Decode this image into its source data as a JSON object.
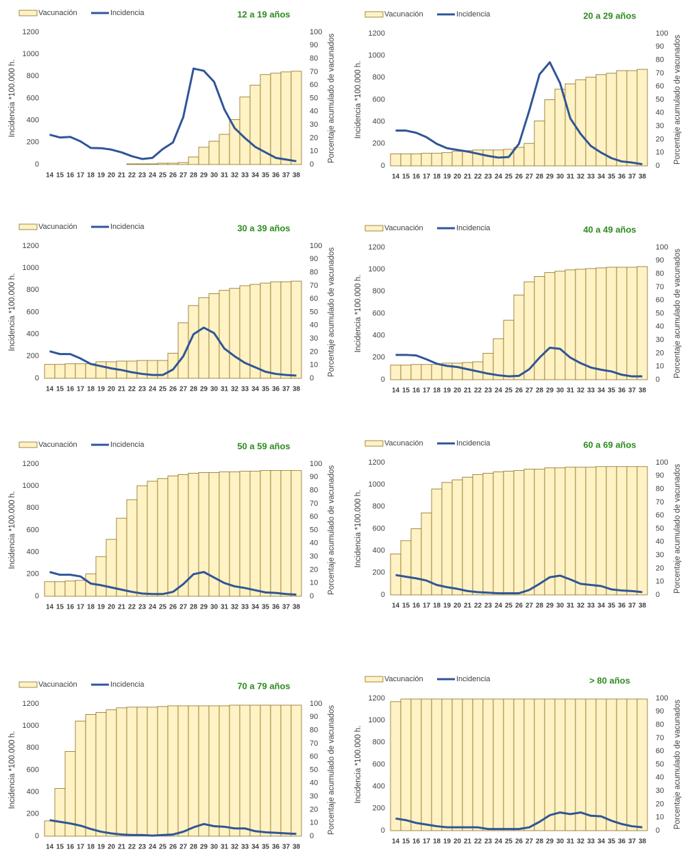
{
  "chart_data": [
    {
      "type": "combo",
      "title": "12 a 19 años",
      "y_label": "Incidencia *100.000 h.",
      "y2_label": "Porcentaje acumulado de vacunados",
      "categories": [
        "14",
        "15",
        "16",
        "17",
        "18",
        "19",
        "20",
        "21",
        "22",
        "23",
        "24",
        "25",
        "26",
        "27",
        "28",
        "29",
        "30",
        "31",
        "32",
        "33",
        "34",
        "35",
        "36",
        "37",
        "38"
      ],
      "series": [
        {
          "name": "Vacunación",
          "type": "bar",
          "axis": "y2",
          "color": "#fff2c4",
          "values": [
            0,
            0,
            0,
            0,
            0,
            0,
            0,
            0,
            0.5,
            0.5,
            0.5,
            1,
            1,
            1.5,
            5.7,
            13,
            17.6,
            22.8,
            34,
            51,
            60,
            68,
            69,
            70,
            70.5
          ]
        },
        {
          "name": "Incidencia",
          "type": "line",
          "color": "#2f5597",
          "values": [
            270,
            245,
            250,
            210,
            150,
            148,
            135,
            110,
            75,
            50,
            60,
            140,
            200,
            430,
            870,
            850,
            750,
            500,
            330,
            240,
            160,
            110,
            60,
            45,
            30
          ]
        }
      ],
      "ylim": [
        0,
        1200
      ],
      "yticks": [
        0,
        200,
        400,
        600,
        800,
        1000,
        1200
      ],
      "y2lim": [
        0,
        100
      ],
      "y2ticks": [
        0,
        10,
        20,
        30,
        40,
        50,
        60,
        70,
        80,
        90,
        100
      ]
    },
    {
      "type": "combo",
      "title": "20 a 29 años",
      "y_label": "Incidencia *100.000 h.",
      "y2_label": "Porcentaje acumulado de vacunados",
      "categories": [
        "14",
        "15",
        "16",
        "17",
        "18",
        "19",
        "20",
        "21",
        "22",
        "23",
        "24",
        "25",
        "26",
        "27",
        "28",
        "29",
        "30",
        "31",
        "32",
        "33",
        "34",
        "35",
        "36",
        "37",
        "38"
      ],
      "series": [
        {
          "name": "Vacunación",
          "type": "bar",
          "axis": "y2",
          "color": "#fff2c4",
          "values": [
            9,
            9,
            9,
            9.5,
            9.5,
            10,
            11,
            11.5,
            12,
            12,
            12,
            12.5,
            14,
            17,
            34,
            50,
            58,
            62,
            65,
            67,
            69,
            70,
            72,
            72,
            73
          ]
        },
        {
          "name": "Incidencia",
          "type": "line",
          "color": "#2f5597",
          "values": [
            320,
            320,
            300,
            260,
            200,
            160,
            145,
            130,
            110,
            90,
            75,
            80,
            200,
            500,
            830,
            940,
            750,
            430,
            290,
            180,
            120,
            70,
            40,
            30,
            15
          ]
        }
      ],
      "ylim": [
        0,
        1200
      ],
      "yticks": [
        0,
        200,
        400,
        600,
        800,
        1000,
        1200
      ],
      "y2lim": [
        0,
        100
      ],
      "y2ticks": [
        0,
        10,
        20,
        30,
        40,
        50,
        60,
        70,
        80,
        90,
        100
      ]
    },
    {
      "type": "combo",
      "title": "30 a 39 años",
      "y_label": "Incidencia *100.000 h.",
      "y2_label": "Porcentaje acumulado de vacunados",
      "categories": [
        "14",
        "15",
        "16",
        "17",
        "18",
        "19",
        "20",
        "21",
        "22",
        "23",
        "24",
        "25",
        "26",
        "27",
        "28",
        "29",
        "30",
        "31",
        "32",
        "33",
        "34",
        "35",
        "36",
        "37",
        "38"
      ],
      "series": [
        {
          "name": "Vacunación",
          "type": "bar",
          "axis": "y2",
          "color": "#fff2c4",
          "values": [
            10.5,
            10.5,
            11,
            11,
            11,
            12.5,
            12.5,
            13,
            13,
            13.5,
            13.5,
            13.5,
            19,
            42,
            55,
            61,
            64,
            66.5,
            68,
            70,
            71,
            72,
            73,
            73,
            73.5
          ]
        },
        {
          "name": "Incidencia",
          "type": "line",
          "color": "#2f5597",
          "values": [
            245,
            220,
            220,
            180,
            130,
            110,
            90,
            75,
            55,
            40,
            30,
            30,
            80,
            200,
            400,
            460,
            410,
            270,
            200,
            140,
            100,
            60,
            40,
            30,
            25
          ]
        }
      ],
      "ylim": [
        0,
        1200
      ],
      "yticks": [
        0,
        200,
        400,
        600,
        800,
        1000,
        1200
      ],
      "y2lim": [
        0,
        100
      ],
      "y2ticks": [
        0,
        10,
        20,
        30,
        40,
        50,
        60,
        70,
        80,
        90,
        100
      ]
    },
    {
      "type": "combo",
      "title": "40 a 49 años",
      "y_label": "Incidencia *100.000 h.",
      "y2_label": "Porcentaje acumulado de vacunados",
      "categories": [
        "14",
        "15",
        "16",
        "17",
        "18",
        "19",
        "20",
        "21",
        "22",
        "23",
        "24",
        "25",
        "26",
        "27",
        "28",
        "29",
        "30",
        "31",
        "32",
        "33",
        "34",
        "35",
        "36",
        "37",
        "38"
      ],
      "series": [
        {
          "name": "Vacunación",
          "type": "bar",
          "axis": "y2",
          "color": "#fff2c4",
          "values": [
            11,
            11,
            11.5,
            11.5,
            11.5,
            12.5,
            12.5,
            13,
            13.5,
            20,
            31,
            45,
            64,
            74,
            78,
            81,
            82,
            83,
            83.5,
            84,
            84.5,
            85,
            85,
            85,
            85.5
          ]
        },
        {
          "name": "Incidencia",
          "type": "line",
          "color": "#2f5597",
          "values": [
            225,
            225,
            220,
            185,
            145,
            125,
            115,
            95,
            75,
            55,
            40,
            30,
            35,
            95,
            200,
            290,
            280,
            200,
            150,
            110,
            90,
            75,
            45,
            30,
            30
          ]
        }
      ],
      "ylim": [
        0,
        1200
      ],
      "yticks": [
        0,
        200,
        400,
        600,
        800,
        1000,
        1200
      ],
      "y2lim": [
        0,
        100
      ],
      "y2ticks": [
        0,
        10,
        20,
        30,
        40,
        50,
        60,
        70,
        80,
        90,
        100
      ]
    },
    {
      "type": "combo",
      "title": "50 a 59 años",
      "y_label": "Incidencia *100.000 h.",
      "y2_label": "Porcentaje acumulado de vacunados",
      "categories": [
        "14",
        "15",
        "16",
        "17",
        "18",
        "19",
        "20",
        "21",
        "22",
        "23",
        "24",
        "25",
        "26",
        "27",
        "28",
        "29",
        "30",
        "31",
        "32",
        "33",
        "34",
        "35",
        "36",
        "37",
        "38"
      ],
      "series": [
        {
          "name": "Vacunación",
          "type": "bar",
          "axis": "y2",
          "color": "#fff2c4",
          "values": [
            11,
            11,
            11.5,
            12,
            17,
            30,
            43,
            59,
            73,
            83.5,
            87,
            89,
            91,
            92,
            93,
            93.5,
            93.5,
            94,
            94,
            94.5,
            94.5,
            95,
            95,
            95,
            95
          ]
        },
        {
          "name": "Incidencia",
          "type": "line",
          "color": "#2f5597",
          "values": [
            220,
            195,
            195,
            180,
            115,
            100,
            80,
            60,
            40,
            25,
            20,
            20,
            40,
            110,
            200,
            220,
            170,
            120,
            90,
            75,
            55,
            35,
            30,
            20,
            15
          ]
        }
      ],
      "ylim": [
        0,
        1200
      ],
      "yticks": [
        0,
        200,
        400,
        600,
        800,
        1000,
        1200
      ],
      "y2lim": [
        0,
        100
      ],
      "y2ticks": [
        0,
        10,
        20,
        30,
        40,
        50,
        60,
        70,
        80,
        90,
        100
      ]
    },
    {
      "type": "combo",
      "title": "60 a 69 años",
      "y_label": "Incidencia *100.000 h.",
      "y2_label": "Porcentaje acumulado de vacunados",
      "categories": [
        "14",
        "15",
        "16",
        "17",
        "18",
        "19",
        "20",
        "21",
        "22",
        "23",
        "24",
        "25",
        "26",
        "27",
        "28",
        "29",
        "30",
        "31",
        "32",
        "33",
        "34",
        "35",
        "36",
        "37",
        "38"
      ],
      "series": [
        {
          "name": "Vacunación",
          "type": "bar",
          "axis": "y2",
          "color": "#fff2c4",
          "values": [
            31,
            41,
            50,
            62,
            80,
            85,
            87,
            89,
            91,
            92,
            93,
            93.5,
            94,
            95,
            95,
            96,
            96,
            96.5,
            96.5,
            96.5,
            97,
            97,
            97,
            97,
            97
          ]
        },
        {
          "name": "Incidencia",
          "type": "line",
          "color": "#2f5597",
          "values": [
            180,
            165,
            150,
            130,
            90,
            70,
            55,
            35,
            25,
            20,
            15,
            15,
            15,
            45,
            100,
            160,
            175,
            140,
            100,
            90,
            80,
            50,
            40,
            35,
            25
          ]
        }
      ],
      "ylim": [
        0,
        1200
      ],
      "yticks": [
        0,
        200,
        400,
        600,
        800,
        1000,
        1200
      ],
      "y2lim": [
        0,
        100
      ],
      "y2ticks": [
        0,
        10,
        20,
        30,
        40,
        50,
        60,
        70,
        80,
        90,
        100
      ]
    },
    {
      "type": "combo",
      "title": "70 a 79 años",
      "y_label": "Incidencia *100.000 h.",
      "y2_label": "Porcentaje acumulado de vacunados",
      "categories": [
        "14",
        "15",
        "16",
        "17",
        "18",
        "19",
        "20",
        "21",
        "22",
        "23",
        "24",
        "25",
        "26",
        "27",
        "28",
        "29",
        "30",
        "31",
        "32",
        "33",
        "34",
        "35",
        "36",
        "37",
        "38"
      ],
      "series": [
        {
          "name": "Vacunación",
          "type": "bar",
          "axis": "y2",
          "color": "#fff2c4",
          "values": [
            11.5,
            36,
            64,
            87,
            92,
            93.5,
            95.5,
            97,
            97.5,
            97.5,
            97.5,
            98,
            98.5,
            98.5,
            98.5,
            98.5,
            98.5,
            98.5,
            99,
            99,
            99,
            99,
            99,
            99,
            99
          ]
        },
        {
          "name": "Incidencia",
          "type": "line",
          "color": "#2f5597",
          "values": [
            145,
            130,
            115,
            95,
            65,
            40,
            25,
            15,
            10,
            10,
            5,
            10,
            15,
            40,
            80,
            110,
            90,
            85,
            70,
            70,
            45,
            35,
            30,
            25,
            20
          ]
        }
      ],
      "ylim": [
        0,
        1200
      ],
      "yticks": [
        0,
        200,
        400,
        600,
        800,
        1000,
        1200
      ],
      "y2lim": [
        0,
        100
      ],
      "y2ticks": [
        0,
        10,
        20,
        30,
        40,
        50,
        60,
        70,
        80,
        90,
        100
      ]
    },
    {
      "type": "combo",
      "title": "> 80 años",
      "y_label": "Incidencia *100.000 h.",
      "y2_label": "Porcentaje acumulado de vacunados",
      "categories": [
        "14",
        "15",
        "16",
        "17",
        "18",
        "19",
        "20",
        "21",
        "22",
        "23",
        "24",
        "25",
        "26",
        "27",
        "28",
        "29",
        "30",
        "31",
        "32",
        "33",
        "34",
        "35",
        "36",
        "37",
        "38"
      ],
      "series": [
        {
          "name": "Vacunación",
          "type": "bar",
          "axis": "y2",
          "color": "#fff2c4",
          "values": [
            97.5,
            99.5,
            99.5,
            99.5,
            99.5,
            99.5,
            99.5,
            99.5,
            99.5,
            99.5,
            99.5,
            99.5,
            99.5,
            99.5,
            99.5,
            99.5,
            99.5,
            99.5,
            99.5,
            99.5,
            99.5,
            99.5,
            99.5,
            99.5,
            99.5
          ]
        },
        {
          "name": "Incidencia",
          "type": "line",
          "color": "#2f5597",
          "values": [
            110,
            95,
            70,
            55,
            40,
            30,
            30,
            30,
            30,
            15,
            15,
            15,
            15,
            30,
            80,
            140,
            165,
            150,
            165,
            135,
            130,
            90,
            60,
            40,
            30
          ]
        }
      ],
      "ylim": [
        0,
        1200
      ],
      "yticks": [
        0,
        200,
        400,
        600,
        800,
        1000,
        1200
      ],
      "y2lim": [
        0,
        100
      ],
      "y2ticks": [
        0,
        10,
        20,
        30,
        40,
        50,
        60,
        70,
        80,
        90,
        100
      ]
    }
  ]
}
